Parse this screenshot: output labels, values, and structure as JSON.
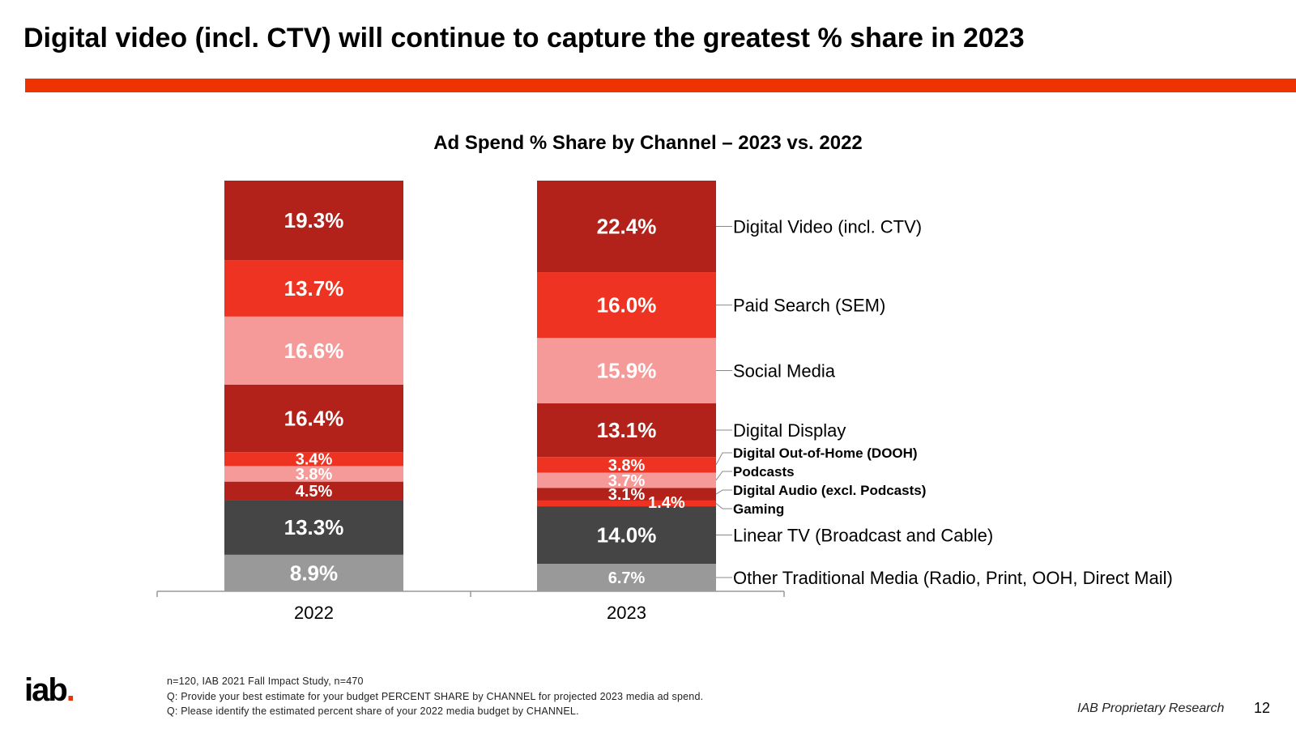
{
  "slide": {
    "title": "Digital video (incl. CTV) will continue to capture the greatest % share in 2023",
    "accent_color": "#ee3300",
    "footnotes": [
      "n=120, IAB 2021 Fall Impact Study, n=470",
      "Q: Provide your best estimate for your budget PERCENT SHARE by CHANNEL for projected 2023 media ad spend.",
      "Q: Please identify the estimated percent share of your 2022 media budget by CHANNEL."
    ],
    "logo_text": "iab",
    "logo_dot": ".",
    "proprietary": "IAB Proprietary Research",
    "page_number": "12"
  },
  "chart_data": {
    "type": "bar",
    "stacked": true,
    "title": "Ad Spend % Share by Channel – 2023 vs. 2022",
    "categories": [
      "2022",
      "2023"
    ],
    "xlabel": "",
    "ylabel": "",
    "ylim": [
      0,
      100
    ],
    "series": [
      {
        "name": "Other Traditional Media (Radio, Print, OOH, Direct Mail)",
        "values": [
          8.9,
          6.7
        ],
        "labels": [
          "8.9%",
          "6.7%"
        ],
        "color": "#999999"
      },
      {
        "name": "Linear TV (Broadcast and Cable)",
        "values": [
          13.3,
          14.0
        ],
        "labels": [
          "13.3%",
          "14.0%"
        ],
        "color": "#454545"
      },
      {
        "name": "Gaming",
        "values": [
          0,
          1.4
        ],
        "labels": [
          "",
          "1.4%"
        ],
        "color": "#ee3322"
      },
      {
        "name": "Digital Audio (excl. Podcasts)",
        "values": [
          4.5,
          3.1
        ],
        "labels": [
          "4.5%",
          "3.1%"
        ],
        "color": "#b2221b"
      },
      {
        "name": "Podcasts",
        "values": [
          3.8,
          3.7
        ],
        "labels": [
          "3.8%",
          "3.7%"
        ],
        "color": "#f59999"
      },
      {
        "name": "Digital Out-of-Home (DOOH)",
        "values": [
          3.4,
          3.8
        ],
        "labels": [
          "3.4%",
          "3.8%"
        ],
        "color": "#ee3322"
      },
      {
        "name": "Digital Display",
        "values": [
          16.4,
          13.1
        ],
        "labels": [
          "16.4%",
          "13.1%"
        ],
        "color": "#b2221b"
      },
      {
        "name": "Social Media",
        "values": [
          16.6,
          15.9
        ],
        "labels": [
          "16.6%",
          "15.9%"
        ],
        "color": "#f59999"
      },
      {
        "name": "Paid Search (SEM)",
        "values": [
          13.7,
          16.0
        ],
        "labels": [
          "13.7%",
          "16.0%"
        ],
        "color": "#ee3322"
      },
      {
        "name": "Digital Video (incl. CTV)",
        "values": [
          19.3,
          22.4
        ],
        "labels": [
          "19.3%",
          "22.4%"
        ],
        "color": "#b2221b"
      }
    ]
  }
}
